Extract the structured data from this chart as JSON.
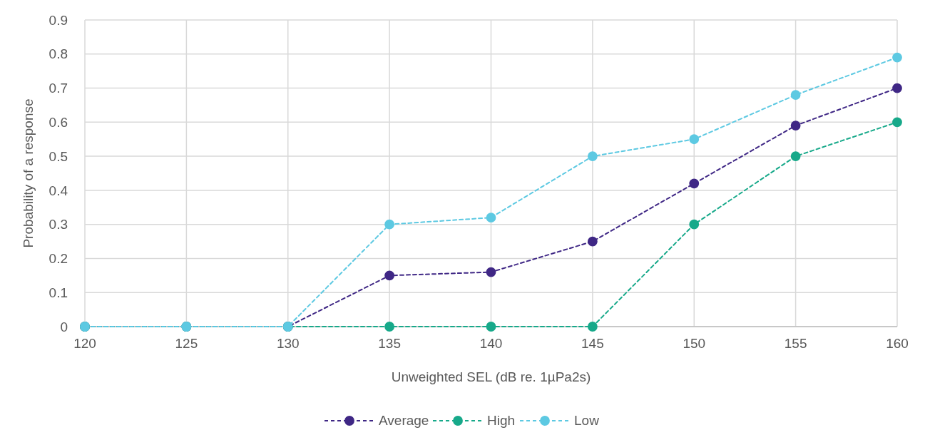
{
  "chart_data": {
    "type": "line",
    "xlabel": "Unweighted SEL (dB re. 1µPa2s)",
    "ylabel": "Probability of a response",
    "x": [
      120,
      125,
      130,
      135,
      140,
      145,
      150,
      155,
      160
    ],
    "series": [
      {
        "name": "Average",
        "color": "#3f2785",
        "values": [
          0,
          0,
          0,
          0.15,
          0.16,
          0.25,
          0.42,
          0.59,
          0.7
        ]
      },
      {
        "name": "High",
        "color": "#17a98a",
        "values": [
          0,
          0,
          0,
          0,
          0,
          0,
          0.3,
          0.5,
          0.6
        ]
      },
      {
        "name": "Low",
        "color": "#5dc9e2",
        "values": [
          0,
          0,
          0,
          0.3,
          0.32,
          0.5,
          0.55,
          0.68,
          0.79
        ]
      }
    ],
    "xlim": [
      120,
      160
    ],
    "xticks": [
      120,
      125,
      130,
      135,
      140,
      145,
      150,
      155,
      160
    ],
    "ylim": [
      0,
      0.9
    ],
    "yticks": [
      0,
      0.1,
      0.2,
      0.3,
      0.4,
      0.5,
      0.6,
      0.7,
      0.8,
      0.9
    ],
    "grid": true,
    "legend": "bottom",
    "marker": "circle",
    "line_style": "dashed"
  }
}
